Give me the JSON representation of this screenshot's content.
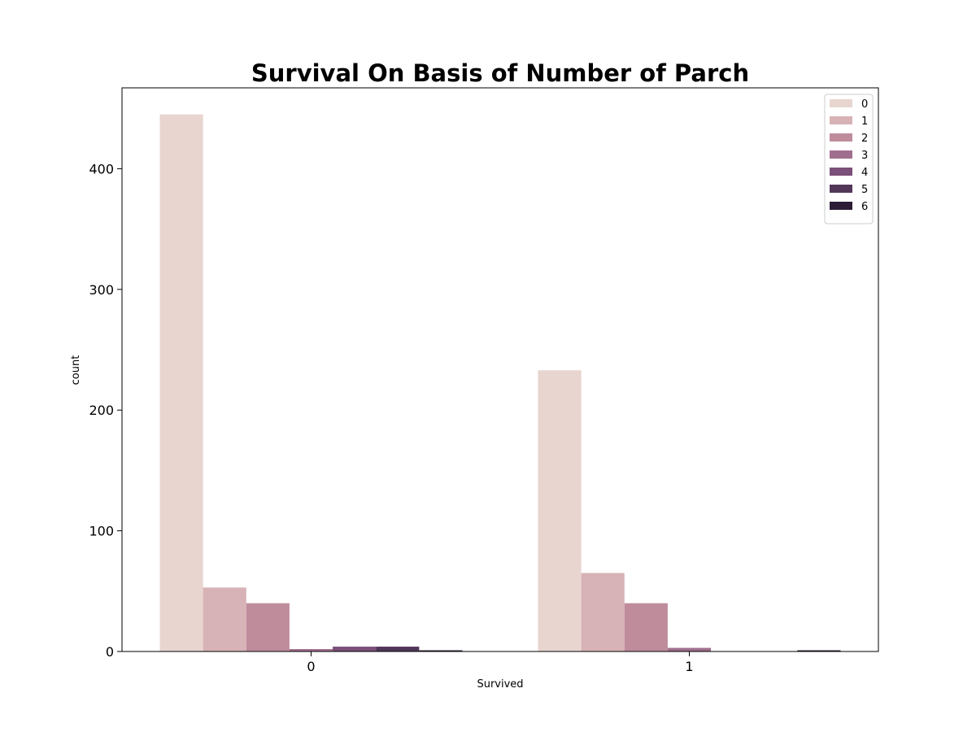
{
  "chart_data": {
    "type": "bar",
    "title": "Survival On Basis of Number of Parch",
    "xlabel": "Survived",
    "ylabel": "count",
    "categories": [
      "0",
      "1"
    ],
    "ylim": [
      0,
      467
    ],
    "yticks": [
      0,
      100,
      200,
      300,
      400
    ],
    "grid": false,
    "legend": {
      "placement": "top-right",
      "title": ""
    },
    "series": [
      {
        "name": "0",
        "color": "#e8d5d0",
        "values": [
          445,
          233
        ]
      },
      {
        "name": "1",
        "color": "#d7b2b6",
        "values": [
          53,
          65
        ]
      },
      {
        "name": "2",
        "color": "#bf8c9c",
        "values": [
          40,
          40
        ]
      },
      {
        "name": "3",
        "color": "#a16f8e",
        "values": [
          2,
          3
        ]
      },
      {
        "name": "4",
        "color": "#7b507a",
        "values": [
          4,
          0
        ]
      },
      {
        "name": "5",
        "color": "#523759",
        "values": [
          4,
          0
        ]
      },
      {
        "name": "6",
        "color": "#2c1c36",
        "values": [
          1,
          1
        ]
      }
    ]
  }
}
